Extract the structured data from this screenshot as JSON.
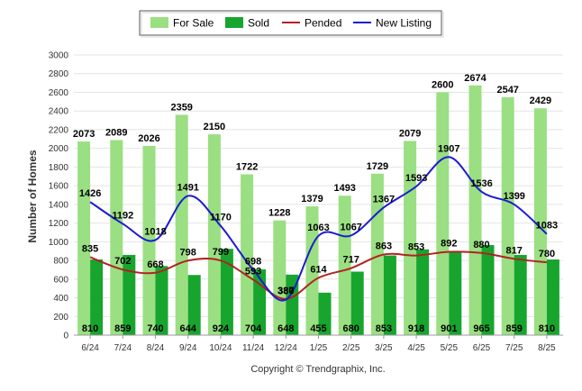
{
  "chart_data": {
    "type": "bar",
    "categories": [
      "6/24",
      "7/24",
      "8/24",
      "9/24",
      "10/24",
      "11/24",
      "12/24",
      "1/25",
      "2/25",
      "3/25",
      "4/25",
      "5/25",
      "6/25",
      "7/25",
      "8/25"
    ],
    "series": [
      {
        "name": "For Sale",
        "kind": "bar",
        "color": "#9adf82",
        "values": [
          2073,
          2089,
          2026,
          2359,
          2150,
          1722,
          1228,
          1379,
          1493,
          1729,
          2079,
          2600,
          2674,
          2547,
          2429
        ]
      },
      {
        "name": "Sold",
        "kind": "bar",
        "color": "#17a52e",
        "values": [
          810,
          859,
          740,
          644,
          924,
          704,
          648,
          455,
          680,
          853,
          918,
          901,
          965,
          859,
          810
        ]
      },
      {
        "name": "Pended",
        "kind": "line",
        "color": "#b22222",
        "values": [
          835,
          702,
          668,
          798,
          799,
          593,
          387,
          614,
          717,
          863,
          853,
          892,
          880,
          817,
          780
        ]
      },
      {
        "name": "New Listing",
        "kind": "line",
        "color": "#1c1cd1",
        "values": [
          1426,
          1192,
          1018,
          1491,
          1170,
          698,
          380,
          1063,
          1067,
          1367,
          1593,
          1907,
          1536,
          1399,
          1083
        ]
      }
    ],
    "ylabel": "Number of Homes",
    "ylim": [
      0,
      3000
    ],
    "yticks": [
      "0",
      "200",
      "400",
      "600",
      "800",
      "1000",
      "1200",
      "1400",
      "1600",
      "1800",
      "2000",
      "2200",
      "2400",
      "2600",
      "2800",
      "3000"
    ],
    "grid": true,
    "legend": "top-center",
    "copyright": "Copyright © Trendgraphix, Inc."
  }
}
